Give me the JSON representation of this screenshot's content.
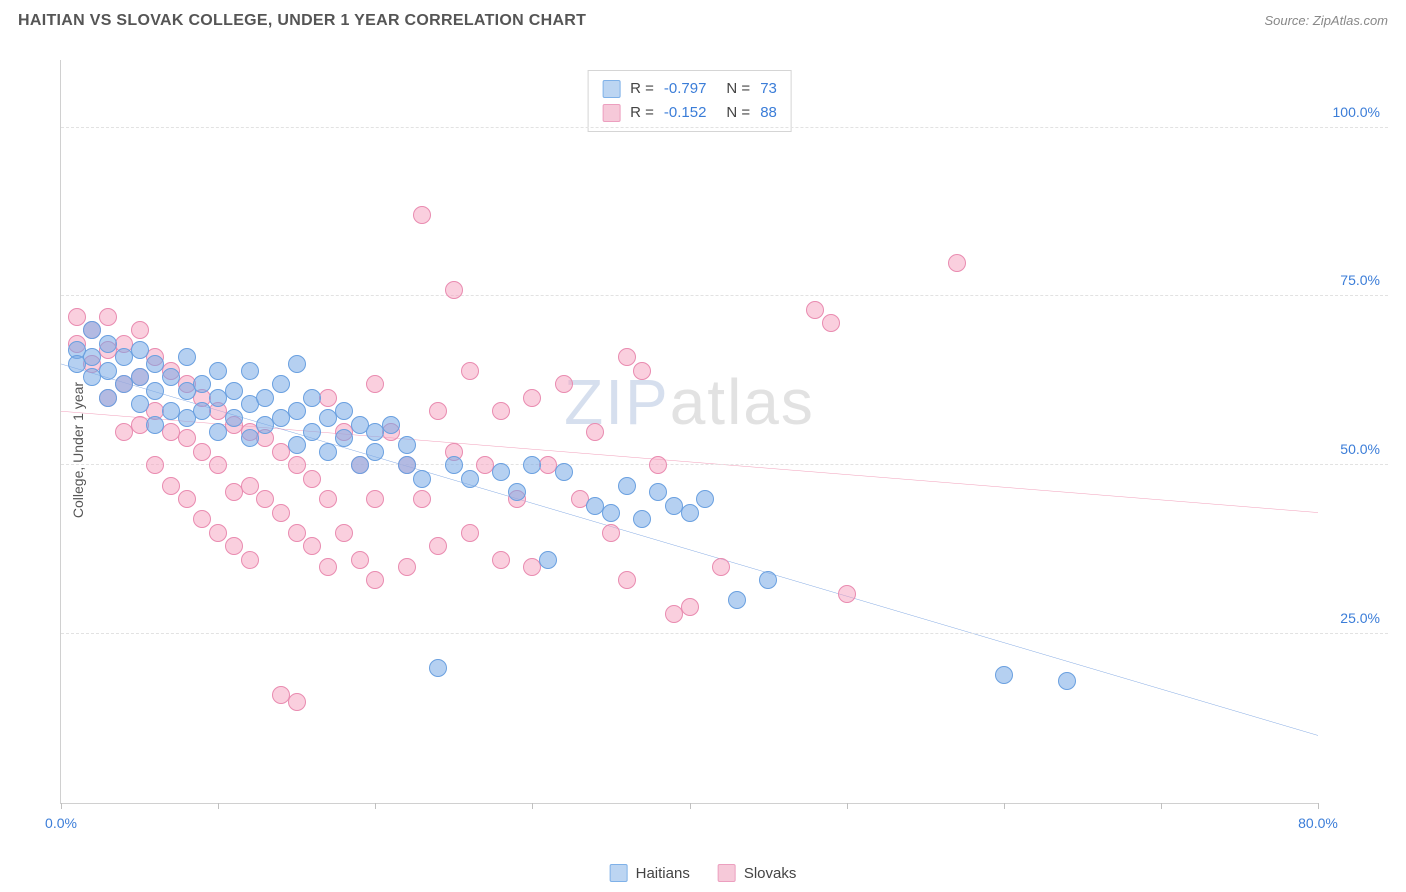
{
  "header": {
    "title": "HAITIAN VS SLOVAK COLLEGE, UNDER 1 YEAR CORRELATION CHART",
    "source": "Source: ZipAtlas.com"
  },
  "axes": {
    "y_title": "College, Under 1 year",
    "x_min": 0,
    "x_max": 80,
    "y_min": 0,
    "y_max": 110,
    "y_gridlines": [
      25,
      50,
      75,
      100
    ],
    "y_labels": [
      "25.0%",
      "50.0%",
      "75.0%",
      "100.0%"
    ],
    "x_ticks": [
      0,
      10,
      20,
      30,
      40,
      50,
      60,
      70,
      80
    ],
    "x_labels_shown": {
      "0": "0.0%",
      "80": "80.0%"
    },
    "label_color": "#3b7dd8",
    "grid_color": "#e2e2e2",
    "axis_line_color": "#d0d0d0"
  },
  "series": {
    "haitians": {
      "label": "Haitians",
      "fill": "rgba(120,170,230,0.55)",
      "stroke": "#6aa0e0",
      "swatch_fill": "#bcd5f2",
      "swatch_border": "#7fb1e8",
      "line_color": "#2f6fd0",
      "marker_radius": 9,
      "R": "-0.797",
      "N": "73",
      "trend": {
        "x1": 0,
        "y1": 65,
        "x2": 80,
        "y2": 10
      },
      "points": [
        [
          1,
          67
        ],
        [
          1,
          65
        ],
        [
          2,
          70
        ],
        [
          2,
          66
        ],
        [
          2,
          63
        ],
        [
          3,
          68
        ],
        [
          3,
          64
        ],
        [
          3,
          60
        ],
        [
          4,
          66
        ],
        [
          4,
          62
        ],
        [
          5,
          67
        ],
        [
          5,
          63
        ],
        [
          5,
          59
        ],
        [
          6,
          65
        ],
        [
          6,
          61
        ],
        [
          6,
          56
        ],
        [
          7,
          63
        ],
        [
          7,
          58
        ],
        [
          8,
          66
        ],
        [
          8,
          61
        ],
        [
          8,
          57
        ],
        [
          9,
          62
        ],
        [
          9,
          58
        ],
        [
          10,
          64
        ],
        [
          10,
          60
        ],
        [
          10,
          55
        ],
        [
          11,
          61
        ],
        [
          11,
          57
        ],
        [
          12,
          64
        ],
        [
          12,
          59
        ],
        [
          12,
          54
        ],
        [
          13,
          60
        ],
        [
          13,
          56
        ],
        [
          14,
          62
        ],
        [
          14,
          57
        ],
        [
          15,
          65
        ],
        [
          15,
          58
        ],
        [
          15,
          53
        ],
        [
          16,
          60
        ],
        [
          16,
          55
        ],
        [
          17,
          57
        ],
        [
          17,
          52
        ],
        [
          18,
          58
        ],
        [
          18,
          54
        ],
        [
          19,
          56
        ],
        [
          19,
          50
        ],
        [
          20,
          55
        ],
        [
          20,
          52
        ],
        [
          21,
          56
        ],
        [
          22,
          53
        ],
        [
          22,
          50
        ],
        [
          23,
          48
        ],
        [
          24,
          20
        ],
        [
          25,
          50
        ],
        [
          26,
          48
        ],
        [
          28,
          49
        ],
        [
          29,
          46
        ],
        [
          30,
          50
        ],
        [
          31,
          36
        ],
        [
          32,
          49
        ],
        [
          34,
          44
        ],
        [
          35,
          43
        ],
        [
          36,
          47
        ],
        [
          37,
          42
        ],
        [
          38,
          46
        ],
        [
          39,
          44
        ],
        [
          40,
          43
        ],
        [
          41,
          45
        ],
        [
          43,
          30
        ],
        [
          45,
          33
        ],
        [
          60,
          19
        ],
        [
          64,
          18
        ]
      ]
    },
    "slovaks": {
      "label": "Slovaks",
      "fill": "rgba(245,160,190,0.50)",
      "stroke": "#e98bb0",
      "swatch_fill": "#f6c9d9",
      "swatch_border": "#ec9fbf",
      "line_color": "#e85a8a",
      "marker_radius": 9,
      "R": "-0.152",
      "N": "88",
      "trend": {
        "x1": 0,
        "y1": 58,
        "x2": 80,
        "y2": 43
      },
      "points": [
        [
          1,
          72
        ],
        [
          1,
          68
        ],
        [
          2,
          70
        ],
        [
          2,
          65
        ],
        [
          3,
          72
        ],
        [
          3,
          67
        ],
        [
          3,
          60
        ],
        [
          4,
          68
        ],
        [
          4,
          62
        ],
        [
          4,
          55
        ],
        [
          5,
          70
        ],
        [
          5,
          63
        ],
        [
          5,
          56
        ],
        [
          6,
          66
        ],
        [
          6,
          58
        ],
        [
          6,
          50
        ],
        [
          7,
          64
        ],
        [
          7,
          55
        ],
        [
          7,
          47
        ],
        [
          8,
          62
        ],
        [
          8,
          54
        ],
        [
          8,
          45
        ],
        [
          9,
          60
        ],
        [
          9,
          52
        ],
        [
          9,
          42
        ],
        [
          10,
          58
        ],
        [
          10,
          50
        ],
        [
          10,
          40
        ],
        [
          11,
          56
        ],
        [
          11,
          46
        ],
        [
          11,
          38
        ],
        [
          12,
          55
        ],
        [
          12,
          47
        ],
        [
          12,
          36
        ],
        [
          13,
          54
        ],
        [
          13,
          45
        ],
        [
          14,
          52
        ],
        [
          14,
          43
        ],
        [
          14,
          16
        ],
        [
          15,
          50
        ],
        [
          15,
          40
        ],
        [
          15,
          15
        ],
        [
          16,
          48
        ],
        [
          16,
          38
        ],
        [
          17,
          60
        ],
        [
          17,
          45
        ],
        [
          17,
          35
        ],
        [
          18,
          55
        ],
        [
          18,
          40
        ],
        [
          19,
          50
        ],
        [
          19,
          36
        ],
        [
          20,
          62
        ],
        [
          20,
          45
        ],
        [
          20,
          33
        ],
        [
          21,
          55
        ],
        [
          22,
          50
        ],
        [
          22,
          35
        ],
        [
          23,
          87
        ],
        [
          23,
          45
        ],
        [
          24,
          58
        ],
        [
          24,
          38
        ],
        [
          25,
          52
        ],
        [
          25,
          76
        ],
        [
          26,
          64
        ],
        [
          26,
          40
        ],
        [
          27,
          50
        ],
        [
          28,
          58
        ],
        [
          28,
          36
        ],
        [
          29,
          45
        ],
        [
          30,
          60
        ],
        [
          30,
          35
        ],
        [
          31,
          50
        ],
        [
          32,
          62
        ],
        [
          33,
          45
        ],
        [
          34,
          55
        ],
        [
          35,
          40
        ],
        [
          36,
          66
        ],
        [
          36,
          33
        ],
        [
          37,
          64
        ],
        [
          38,
          50
        ],
        [
          39,
          28
        ],
        [
          40,
          29
        ],
        [
          42,
          35
        ],
        [
          48,
          73
        ],
        [
          49,
          71
        ],
        [
          50,
          31
        ],
        [
          57,
          80
        ]
      ]
    }
  },
  "watermark": {
    "z": "ZIP",
    "rest": "atlas"
  },
  "typography": {
    "title_fontsize": 16,
    "source_fontsize": 13,
    "axis_label_fontsize": 14,
    "legend_fontsize": 15,
    "watermark_fontsize": 64
  }
}
